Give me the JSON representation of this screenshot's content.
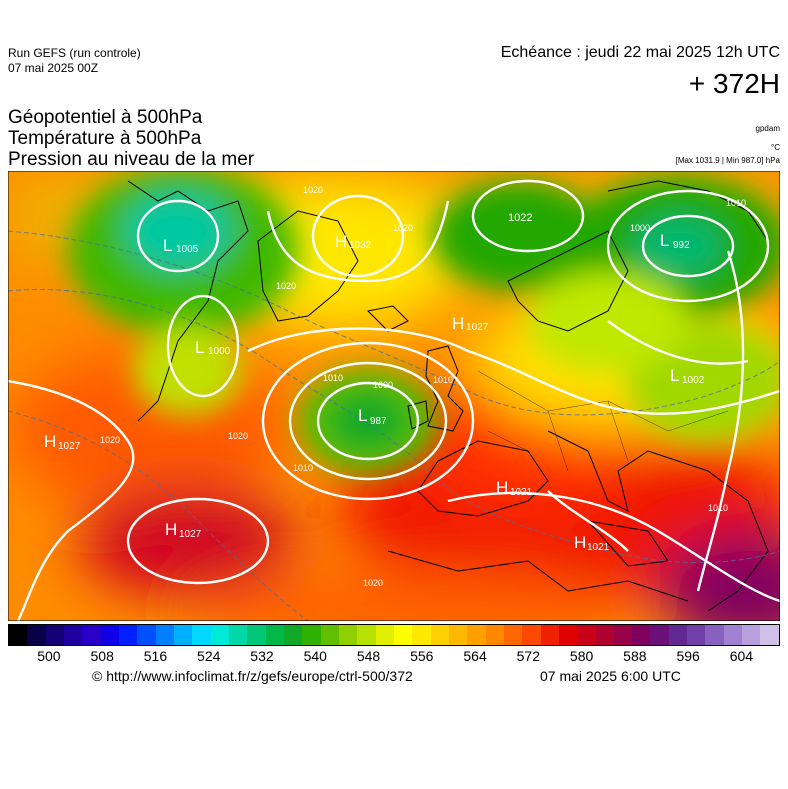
{
  "header": {
    "run_title": "Run GEFS (run controle)",
    "run_date": "07 mai 2025 00Z",
    "echeance": "Echéance : jeudi 22 mai 2025 12h UTC",
    "lead_time": "+ 372H"
  },
  "parameters": [
    "Géopotentiel à 500hPa",
    "Température à 500hPa",
    "Pression au niveau de la mer"
  ],
  "units": {
    "geopotential": "gpdam",
    "temperature": "°C",
    "pressure": "[Max 1031.9 | Min 987.0] hPa"
  },
  "pressure_centers": [
    {
      "type": "H",
      "value": "1032"
    },
    {
      "type": "L",
      "value": "1005"
    },
    {
      "type": "L",
      "value": "1000"
    },
    {
      "type": "H",
      "value": "1027"
    },
    {
      "type": "H",
      "value": "1027"
    },
    {
      "type": "L",
      "value": "987"
    },
    {
      "type": "H",
      "value": "1027"
    },
    {
      "type": "L",
      "value": "992"
    },
    {
      "type": "L",
      "value": "1002"
    },
    {
      "type": "H",
      "value": "1021"
    },
    {
      "type": "H",
      "value": "1021"
    }
  ],
  "isobar_labels": [
    "1020",
    "1020",
    "1020",
    "1010",
    "1000",
    "1010",
    "1020",
    "1010",
    "1020",
    "1000",
    "1010",
    "1020",
    "1010",
    "1022"
  ],
  "colorbar": {
    "ticks": [
      "500",
      "508",
      "516",
      "524",
      "532",
      "540",
      "548",
      "556",
      "564",
      "572",
      "580",
      "588",
      "596",
      "604"
    ],
    "colors": [
      "#000000",
      "#0a0048",
      "#150075",
      "#1e00a0",
      "#2800c8",
      "#1000e8",
      "#0020ff",
      "#0050ff",
      "#0080ff",
      "#00b0ff",
      "#00d8ff",
      "#00e8d8",
      "#00d8a8",
      "#00c878",
      "#00b848",
      "#10a828",
      "#30b000",
      "#60c000",
      "#90d000",
      "#b8e000",
      "#e0f000",
      "#ffff00",
      "#ffe800",
      "#ffd000",
      "#ffb800",
      "#ffa000",
      "#ff8800",
      "#ff6800",
      "#ff4800",
      "#f02000",
      "#e00000",
      "#c80018",
      "#b00030",
      "#980048",
      "#800060",
      "#6a1078",
      "#602890",
      "#7040a8",
      "#8860c0",
      "#a080d0",
      "#b8a0dc",
      "#d0c0e8"
    ]
  },
  "footer": {
    "credit": "© http://www.infoclimat.fr/z/gefs/europe/ctrl-500/372",
    "issued": "07 mai 2025  6:00 UTC"
  }
}
